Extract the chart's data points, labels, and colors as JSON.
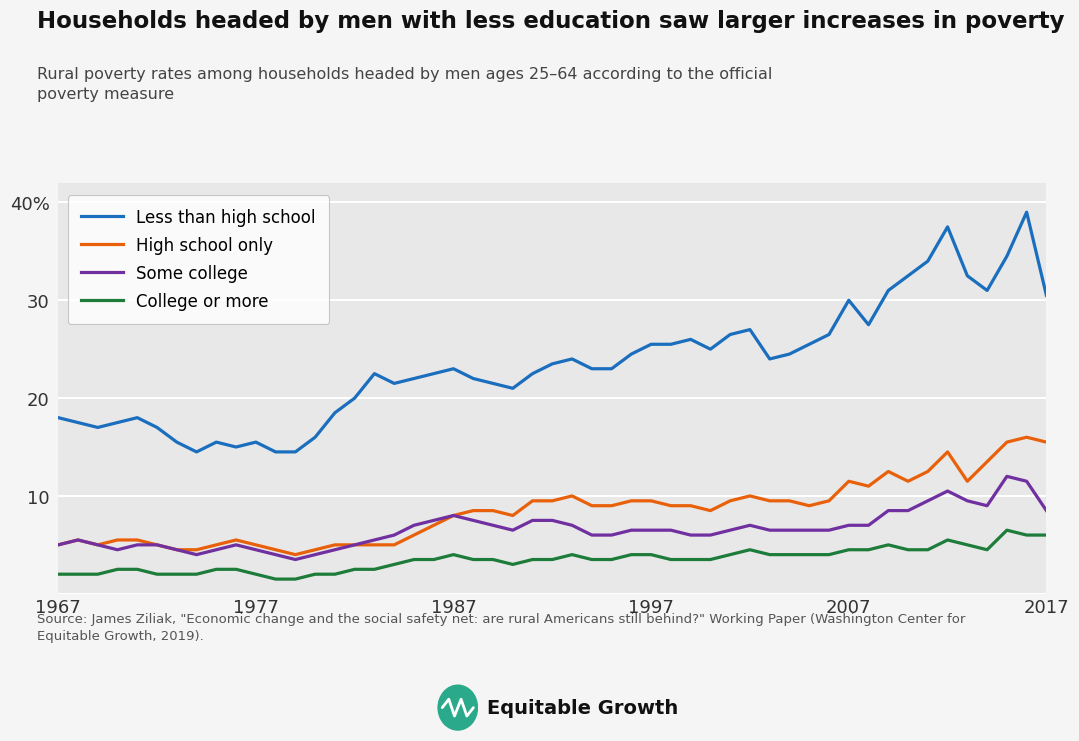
{
  "title": "Households headed by men with less education saw larger increases in poverty",
  "subtitle": "Rural poverty rates among households headed by men ages 25–64 according to the official\npoverty measure",
  "source_text": "Source: James Ziliak, \"Economic change and the social safety net: are rural Americans still behind?\" Working Paper (Washington Center for\nEquitable Growth, 2019).",
  "years": [
    1967,
    1968,
    1969,
    1970,
    1971,
    1972,
    1973,
    1974,
    1975,
    1976,
    1977,
    1978,
    1979,
    1980,
    1981,
    1982,
    1983,
    1984,
    1985,
    1986,
    1987,
    1988,
    1989,
    1990,
    1991,
    1992,
    1993,
    1994,
    1995,
    1996,
    1997,
    1998,
    1999,
    2000,
    2001,
    2002,
    2003,
    2004,
    2005,
    2006,
    2007,
    2008,
    2009,
    2010,
    2011,
    2012,
    2013,
    2014,
    2015,
    2016,
    2017
  ],
  "less_than_hs": [
    18.0,
    17.5,
    17.0,
    17.5,
    18.0,
    17.0,
    15.5,
    14.5,
    15.5,
    15.0,
    15.5,
    14.5,
    14.5,
    16.0,
    18.5,
    20.0,
    22.5,
    21.5,
    22.0,
    22.5,
    23.0,
    22.0,
    21.5,
    21.0,
    22.5,
    23.5,
    24.0,
    23.0,
    23.0,
    24.5,
    25.5,
    25.5,
    26.0,
    25.0,
    26.5,
    27.0,
    24.0,
    24.5,
    25.5,
    26.5,
    30.0,
    27.5,
    31.0,
    32.5,
    34.0,
    37.5,
    32.5,
    31.0,
    34.5,
    39.0,
    30.5
  ],
  "high_school": [
    5.0,
    5.5,
    5.0,
    5.5,
    5.5,
    5.0,
    4.5,
    4.5,
    5.0,
    5.5,
    5.0,
    4.5,
    4.0,
    4.5,
    5.0,
    5.0,
    5.0,
    5.0,
    6.0,
    7.0,
    8.0,
    8.5,
    8.5,
    8.0,
    9.5,
    9.5,
    10.0,
    9.0,
    9.0,
    9.5,
    9.5,
    9.0,
    9.0,
    8.5,
    9.5,
    10.0,
    9.5,
    9.5,
    9.0,
    9.5,
    11.5,
    11.0,
    12.5,
    11.5,
    12.5,
    14.5,
    11.5,
    13.5,
    15.5,
    16.0,
    15.5
  ],
  "some_college": [
    5.0,
    5.5,
    5.0,
    4.5,
    5.0,
    5.0,
    4.5,
    4.0,
    4.5,
    5.0,
    4.5,
    4.0,
    3.5,
    4.0,
    4.5,
    5.0,
    5.5,
    6.0,
    7.0,
    7.5,
    8.0,
    7.5,
    7.0,
    6.5,
    7.5,
    7.5,
    7.0,
    6.0,
    6.0,
    6.5,
    6.5,
    6.5,
    6.0,
    6.0,
    6.5,
    7.0,
    6.5,
    6.5,
    6.5,
    6.5,
    7.0,
    7.0,
    8.5,
    8.5,
    9.5,
    10.5,
    9.5,
    9.0,
    12.0,
    11.5,
    8.5
  ],
  "college_plus": [
    2.0,
    2.0,
    2.0,
    2.5,
    2.5,
    2.0,
    2.0,
    2.0,
    2.5,
    2.5,
    2.0,
    1.5,
    1.5,
    2.0,
    2.0,
    2.5,
    2.5,
    3.0,
    3.5,
    3.5,
    4.0,
    3.5,
    3.5,
    3.0,
    3.5,
    3.5,
    4.0,
    3.5,
    3.5,
    4.0,
    4.0,
    3.5,
    3.5,
    3.5,
    4.0,
    4.5,
    4.0,
    4.0,
    4.0,
    4.0,
    4.5,
    4.5,
    5.0,
    4.5,
    4.5,
    5.5,
    5.0,
    4.5,
    6.5,
    6.0,
    6.0
  ],
  "colors": {
    "less_than_hs": "#1a6ebd",
    "high_school": "#e8610a",
    "some_college": "#7030a0",
    "college_plus": "#1e7c3a"
  },
  "bg_outer": "#f5f5f5",
  "bg_plot": "#e8e8e8",
  "grid_color": "#ffffff",
  "ylim": [
    0,
    42
  ],
  "yticks": [
    0,
    10,
    20,
    30,
    40
  ],
  "xticks": [
    1967,
    1977,
    1987,
    1997,
    2007,
    2017
  ]
}
